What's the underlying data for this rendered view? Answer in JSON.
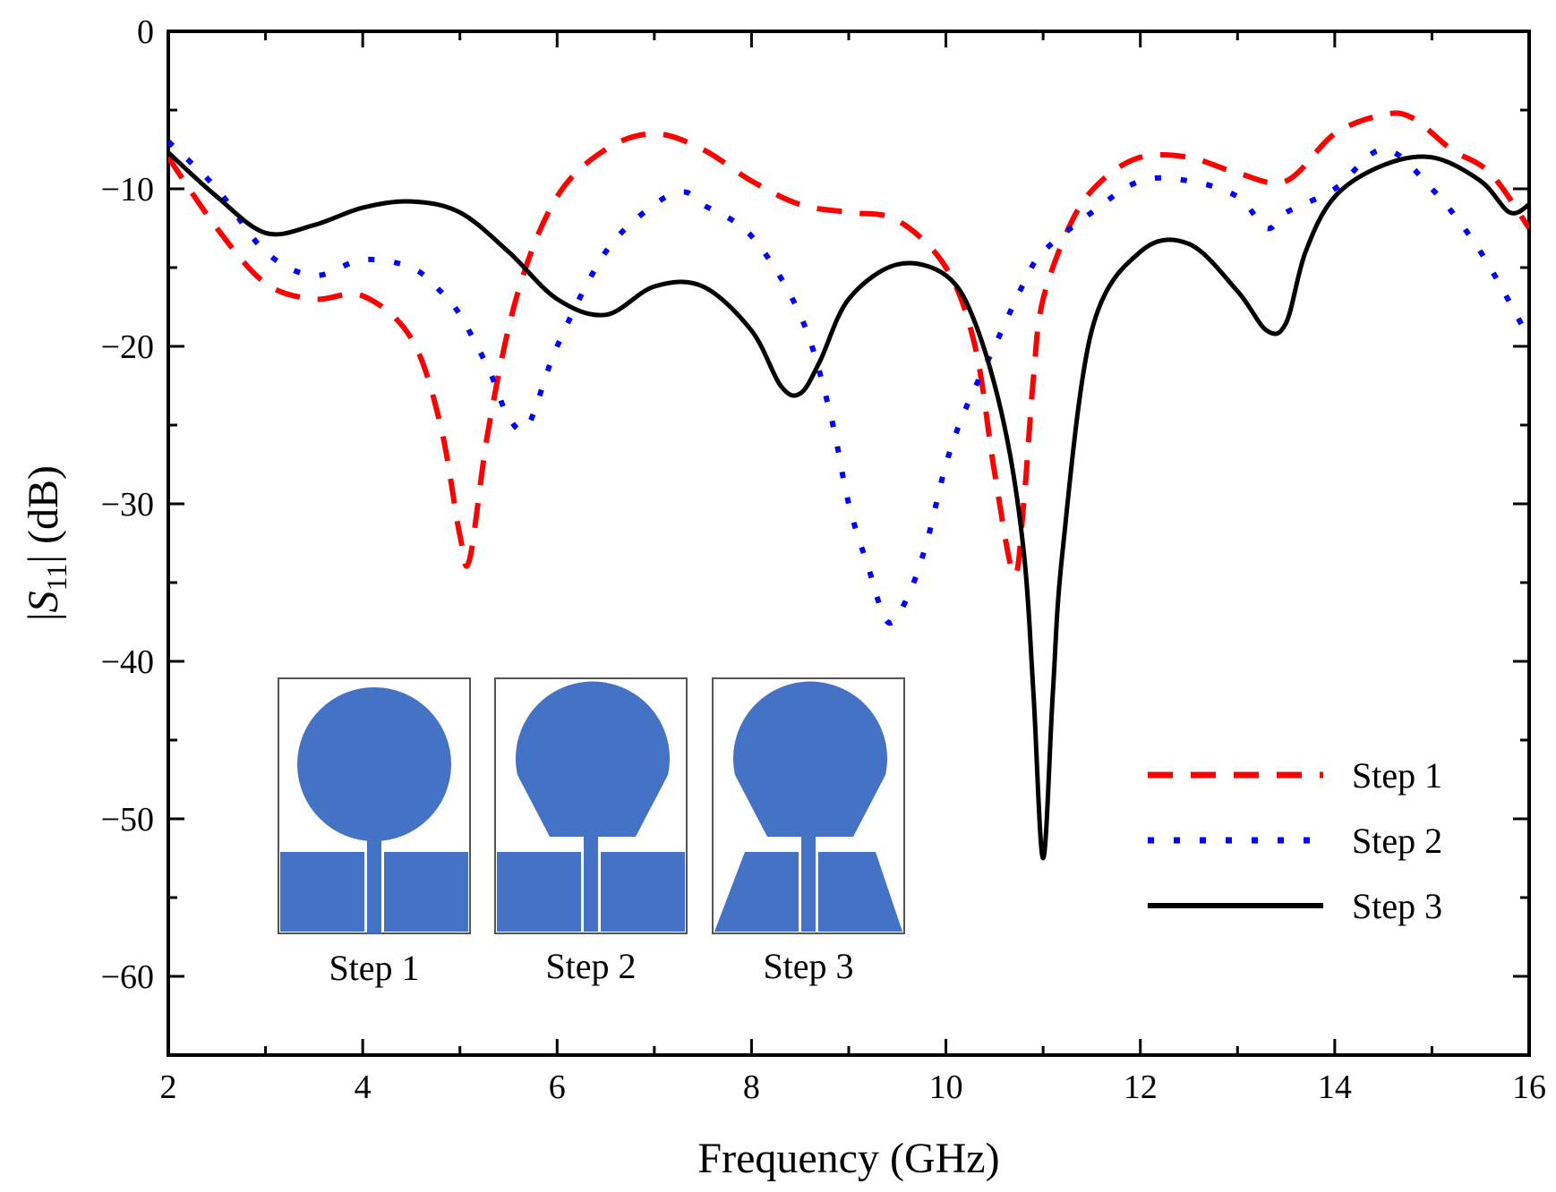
{
  "chart_data": {
    "type": "line",
    "title": "",
    "xlabel": "Frequency (GHz)",
    "ylabel_parts": {
      "left": "|",
      "var": "S",
      "sub": "11",
      "right": "| (dB)"
    },
    "xlim": [
      2,
      16
    ],
    "ylim": [
      -65,
      0
    ],
    "xticks": [
      2,
      4,
      6,
      8,
      10,
      12,
      14,
      16
    ],
    "xtick_labels": [
      "2",
      "4",
      "6",
      "8",
      "10",
      "12",
      "14",
      "16"
    ],
    "yticks": [
      0,
      -10,
      -20,
      -30,
      -40,
      -50,
      -60
    ],
    "ytick_labels": [
      "0",
      "−10",
      "−20",
      "−30",
      "−40",
      "−50",
      "−60"
    ],
    "legend_position": "bottom-right",
    "series": [
      {
        "name": "Step 1",
        "color": "#ff0000",
        "style": "dashed",
        "x": [
          2.0,
          2.5,
          3.0,
          3.5,
          4.0,
          4.5,
          4.8,
          5.0,
          5.1,
          5.3,
          5.6,
          6.0,
          6.5,
          7.0,
          7.5,
          8.0,
          8.5,
          9.0,
          9.5,
          10.0,
          10.3,
          10.5,
          10.7,
          10.8,
          10.9,
          11.0,
          11.3,
          11.6,
          12.0,
          12.5,
          13.0,
          13.5,
          14.0,
          14.5,
          14.8,
          15.2,
          15.6,
          16.0
        ],
        "y": [
          -8.0,
          -12.5,
          -16.0,
          -17.0,
          -16.8,
          -19.5,
          -25.0,
          -32.0,
          -33.5,
          -25.0,
          -16.5,
          -10.5,
          -7.5,
          -6.5,
          -7.5,
          -9.5,
          -11.0,
          -11.5,
          -12.0,
          -15.0,
          -20.0,
          -28.0,
          -34.5,
          -30.0,
          -22.0,
          -17.0,
          -12.0,
          -9.5,
          -8.0,
          -8.0,
          -9.0,
          -9.5,
          -6.5,
          -5.3,
          -5.5,
          -7.5,
          -9.0,
          -12.5
        ]
      },
      {
        "name": "Step 2",
        "color": "#0000ff",
        "style": "dotted",
        "x": [
          2.0,
          2.5,
          3.0,
          3.5,
          4.0,
          4.5,
          4.8,
          5.0,
          5.3,
          5.5,
          5.7,
          6.0,
          6.5,
          7.0,
          7.3,
          7.5,
          8.0,
          8.5,
          8.8,
          9.0,
          9.2,
          9.4,
          9.6,
          9.8,
          10.0,
          10.2,
          10.5,
          10.8,
          11.0,
          11.5,
          12.0,
          12.5,
          13.0,
          13.3,
          13.5,
          14.0,
          14.5,
          15.0,
          15.5,
          16.0
        ],
        "y": [
          -7.0,
          -10.0,
          -14.0,
          -15.5,
          -14.5,
          -15.0,
          -16.5,
          -18.0,
          -21.5,
          -24.5,
          -25.0,
          -20.0,
          -14.0,
          -11.0,
          -10.2,
          -11.0,
          -13.0,
          -18.0,
          -24.0,
          -30.0,
          -34.0,
          -37.5,
          -36.0,
          -32.5,
          -27.5,
          -24.0,
          -20.0,
          -16.0,
          -14.0,
          -11.5,
          -9.5,
          -9.5,
          -10.5,
          -12.5,
          -11.5,
          -10.0,
          -7.5,
          -10.0,
          -14.0,
          -19.5
        ]
      },
      {
        "name": "Step 3",
        "color": "#000000",
        "style": "solid",
        "x": [
          2.0,
          2.5,
          3.0,
          3.5,
          4.0,
          4.5,
          5.0,
          5.5,
          6.0,
          6.5,
          7.0,
          7.5,
          8.0,
          8.3,
          8.5,
          8.7,
          9.0,
          9.5,
          10.0,
          10.3,
          10.6,
          10.8,
          10.9,
          11.0,
          11.1,
          11.2,
          11.5,
          12.0,
          12.5,
          13.0,
          13.3,
          13.5,
          13.7,
          14.0,
          14.5,
          15.0,
          15.5,
          15.8,
          16.0
        ],
        "y": [
          -7.7,
          -10.5,
          -12.8,
          -12.3,
          -11.2,
          -10.8,
          -11.5,
          -14.0,
          -17.0,
          -18.0,
          -16.2,
          -16.2,
          -19.0,
          -22.5,
          -23.0,
          -21.0,
          -17.0,
          -14.8,
          -15.5,
          -18.5,
          -25.0,
          -33.0,
          -42.0,
          -52.5,
          -42.0,
          -33.0,
          -19.0,
          -14.0,
          -13.5,
          -16.5,
          -19.0,
          -18.5,
          -14.0,
          -10.5,
          -8.5,
          -8.0,
          -9.5,
          -11.5,
          -11.0
        ]
      }
    ],
    "inset": {
      "labels": [
        "Step 1",
        "Step 2",
        "Step 3"
      ]
    }
  }
}
